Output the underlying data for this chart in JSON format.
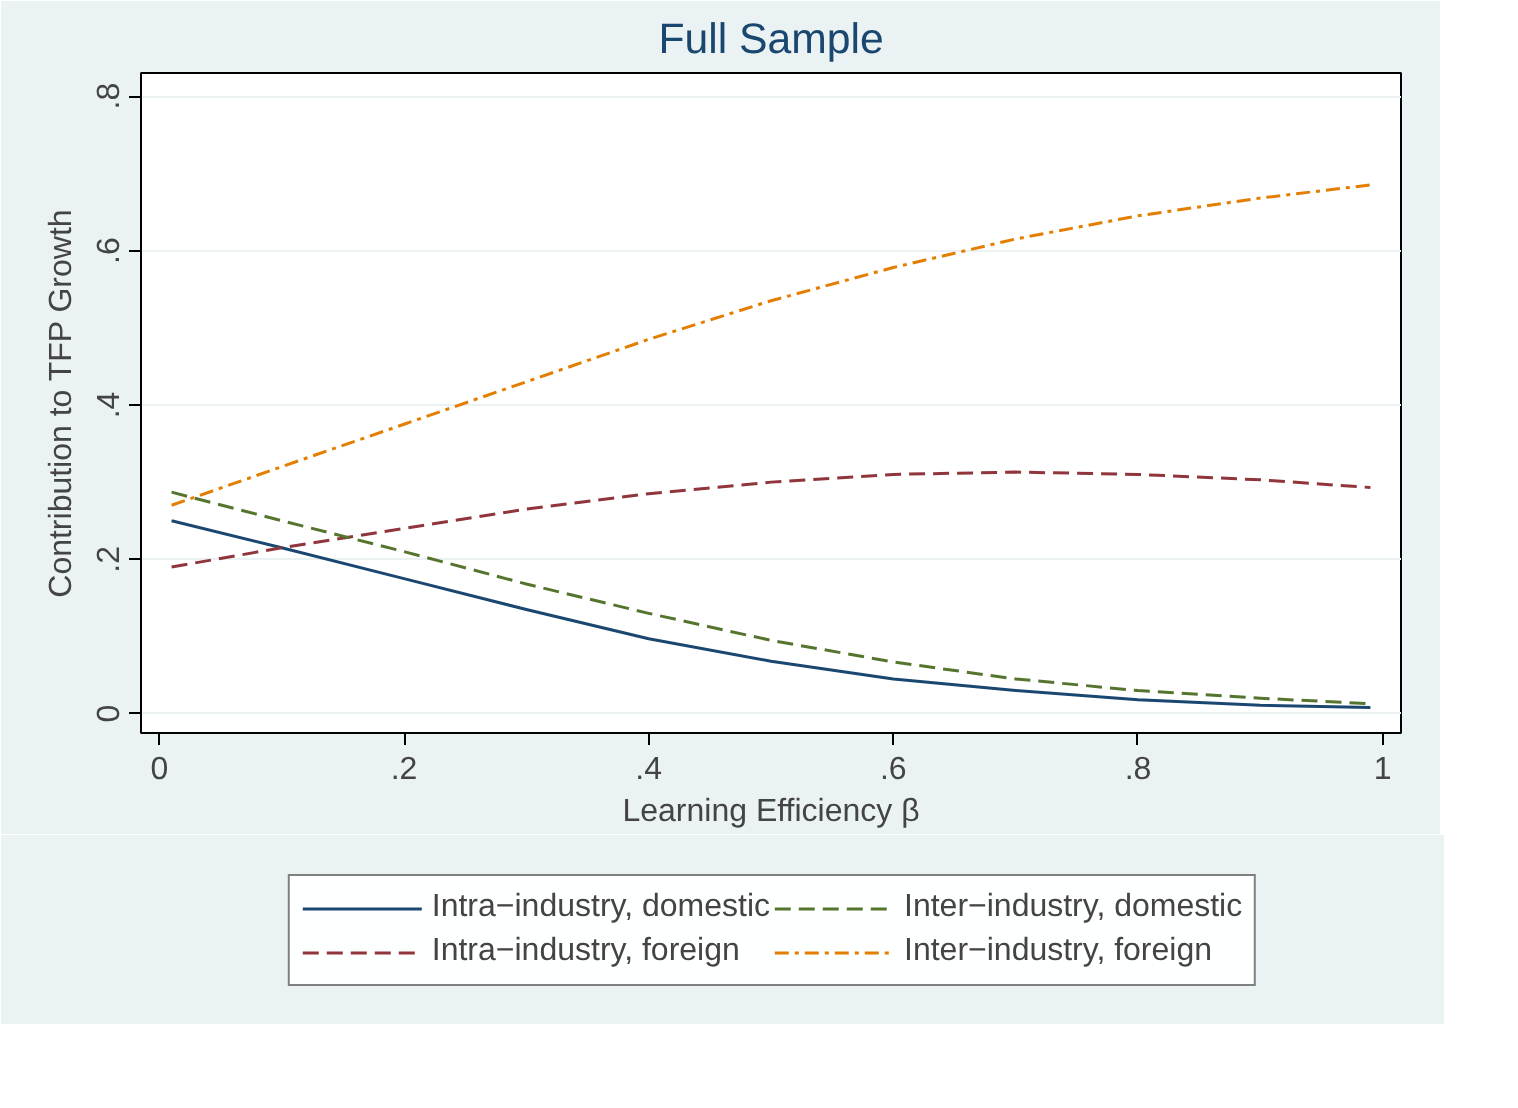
{
  "chart_data": {
    "type": "line",
    "title": "Full Sample",
    "xlabel": "Learning Efficiency β",
    "ylabel": "Contribution to TFP Growth",
    "x": [
      0.01,
      0.1,
      0.2,
      0.3,
      0.4,
      0.5,
      0.6,
      0.7,
      0.8,
      0.9,
      0.99
    ],
    "xlim": [
      -0.015,
      1.015
    ],
    "ylim": [
      -0.025,
      0.83
    ],
    "xticks": [
      0,
      {
        "value": 0.2,
        "label": ".2"
      },
      {
        "value": 0.4,
        "label": ".4"
      },
      {
        "value": 0.6,
        "label": ".6"
      },
      {
        "value": 0.8,
        "label": ".8"
      },
      1
    ],
    "yticks": [
      0,
      {
        "value": 0.2,
        "label": ".2"
      },
      {
        "value": 0.4,
        "label": ".4"
      },
      {
        "value": 0.6,
        "label": ".6"
      },
      {
        "value": 0.8,
        "label": ".8"
      }
    ],
    "grid": "y",
    "legend": "bottom",
    "marker": "none",
    "series": [
      {
        "name": "Intra−industry, domestic",
        "color": "#1a476f",
        "line_style": "solid",
        "values": [
          0.25,
          0.215,
          0.175,
          0.135,
          0.097,
          0.068,
          0.045,
          0.03,
          0.018,
          0.011,
          0.008
        ]
      },
      {
        "name": "Intra−industry, foreign",
        "color": "#90353b",
        "line_style": "dashed",
        "values": [
          0.19,
          0.215,
          0.24,
          0.265,
          0.285,
          0.3,
          0.31,
          0.313,
          0.31,
          0.303,
          0.293
        ]
      },
      {
        "name": "Inter−industry, domestic",
        "color": "#55752f",
        "line_style": "dashed",
        "values": [
          0.287,
          0.25,
          0.21,
          0.168,
          0.13,
          0.095,
          0.067,
          0.045,
          0.03,
          0.02,
          0.013
        ]
      },
      {
        "name": "Inter−industry, foreign",
        "color": "#e37e00",
        "line_style": "dashdot",
        "values": [
          0.27,
          0.32,
          0.375,
          0.43,
          0.485,
          0.535,
          0.578,
          0.615,
          0.645,
          0.668,
          0.685
        ]
      }
    ]
  }
}
